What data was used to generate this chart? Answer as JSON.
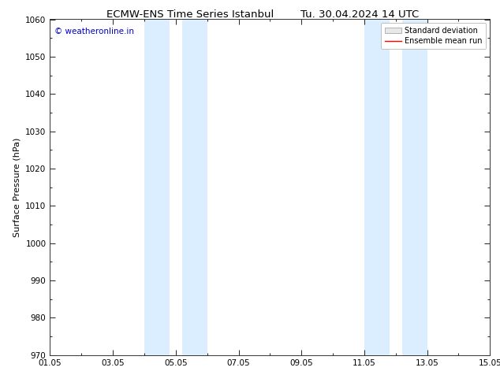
{
  "title": "ECMW-ENS Time Series Istanbul",
  "title2": "Tu. 30.04.2024 14 UTC",
  "ylabel": "Surface Pressure (hPa)",
  "ylim": [
    970,
    1060
  ],
  "yticks": [
    970,
    980,
    990,
    1000,
    1010,
    1020,
    1030,
    1040,
    1050,
    1060
  ],
  "xlim": [
    0,
    14
  ],
  "xtick_labels": [
    "01.05",
    "03.05",
    "05.05",
    "07.05",
    "09.05",
    "11.05",
    "13.05",
    "15.05"
  ],
  "xtick_positions": [
    0,
    2,
    4,
    6,
    8,
    10,
    12,
    14
  ],
  "shaded_bands": [
    {
      "x_start": 3.0,
      "x_end": 3.8
    },
    {
      "x_start": 4.2,
      "x_end": 5.0
    },
    {
      "x_start": 10.0,
      "x_end": 10.8
    },
    {
      "x_start": 11.2,
      "x_end": 12.0
    }
  ],
  "band_color": "#daeeff",
  "watermark": "© weatheronline.in",
  "watermark_color": "#0000cc",
  "background_color": "#ffffff",
  "legend_mean_color": "#ff0000",
  "title_fontsize": 9.5,
  "axis_label_fontsize": 8,
  "tick_fontsize": 7.5,
  "legend_fontsize": 7
}
